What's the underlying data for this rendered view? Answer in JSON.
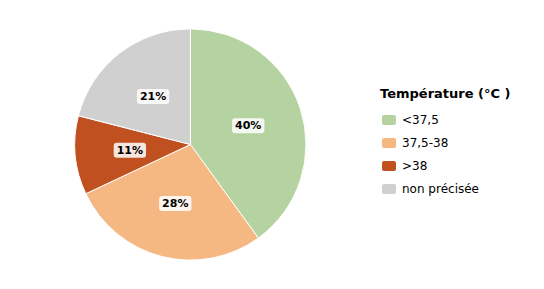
{
  "chart_data": {
    "type": "pie",
    "title": "Température (°C )",
    "categories": [
      "<37,5",
      "37,5-38",
      ">38",
      "non précisée"
    ],
    "values": [
      40,
      28,
      11,
      21
    ],
    "value_labels": [
      "40%",
      "28%",
      "11%",
      "21%"
    ],
    "colors": [
      "#b5d3a0",
      "#f5b882",
      "#c05020",
      "#d0d0d0"
    ],
    "data_labels": true,
    "legend": "right"
  }
}
